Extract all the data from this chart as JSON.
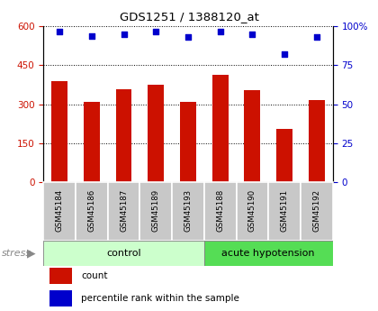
{
  "title": "GDS1251 / 1388120_at",
  "samples": [
    "GSM45184",
    "GSM45186",
    "GSM45187",
    "GSM45189",
    "GSM45193",
    "GSM45188",
    "GSM45190",
    "GSM45191",
    "GSM45192"
  ],
  "counts": [
    390,
    308,
    358,
    375,
    308,
    415,
    355,
    205,
    315
  ],
  "percentiles": [
    97,
    94,
    95,
    97,
    93,
    97,
    95,
    82,
    93
  ],
  "group_split": 5,
  "group_labels": [
    "control",
    "acute hypotension"
  ],
  "ylim_left": [
    0,
    600
  ],
  "ylim_right": [
    0,
    100
  ],
  "yticks_left": [
    0,
    150,
    300,
    450,
    600
  ],
  "yticks_right": [
    0,
    25,
    50,
    75,
    100
  ],
  "bar_color": "#cc1100",
  "scatter_color": "#0000cc",
  "bg_plot": "#ffffff",
  "bg_xlabels": "#c8c8c8",
  "bg_control": "#ccffcc",
  "bg_acute": "#55dd55",
  "stress_label": "stress",
  "legend_count": "count",
  "legend_pct": "percentile rank within the sample",
  "bar_width": 0.5
}
